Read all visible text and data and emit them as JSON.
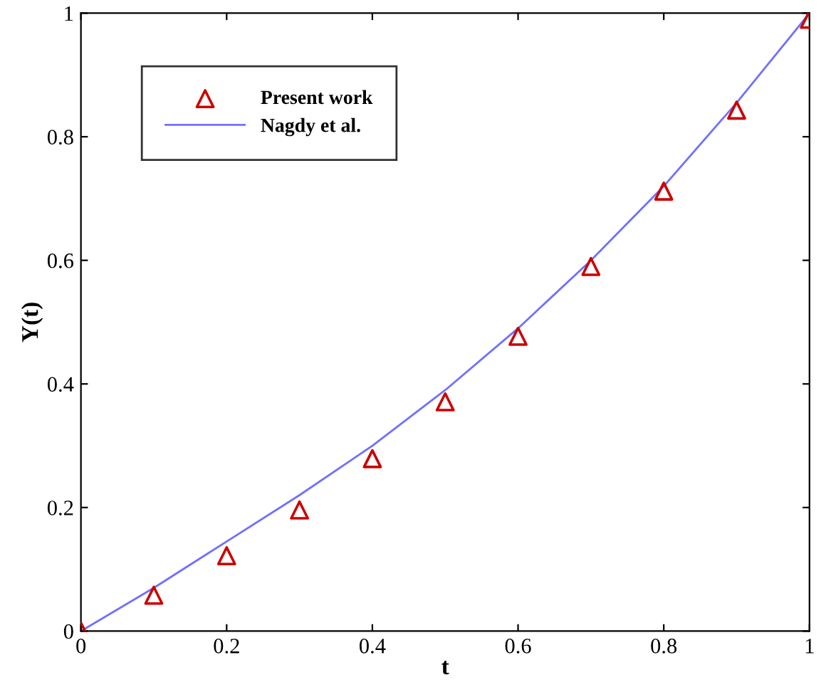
{
  "chart_data": {
    "type": "scatter",
    "xlabel": "t",
    "ylabel": "Y(t)",
    "x": [
      0,
      0.1,
      0.2,
      0.3,
      0.4,
      0.5,
      0.6,
      0.7,
      0.8,
      0.9,
      1.0
    ],
    "series": [
      {
        "name": "Present work",
        "color": "#cc0000",
        "marker": "triangle",
        "values": [
          0.0,
          0.058,
          0.122,
          0.196,
          0.279,
          0.371,
          0.477,
          0.59,
          0.712,
          0.843,
          0.99
        ]
      },
      {
        "name": "Nagdy et al.",
        "type": "line",
        "color": "#7070ff",
        "line_style": "solid",
        "values": [
          0.0,
          0.07,
          0.145,
          0.22,
          0.3,
          0.39,
          0.49,
          0.6,
          0.72,
          0.855,
          1.0
        ]
      }
    ],
    "xlim": [
      0,
      1
    ],
    "ylim": [
      0,
      1
    ],
    "xticks": [
      0,
      0.2,
      0.4,
      0.6,
      0.8,
      1
    ],
    "yticks": [
      0,
      0.2,
      0.4,
      0.6,
      0.8,
      1
    ],
    "legend": "top left",
    "grid": false
  }
}
